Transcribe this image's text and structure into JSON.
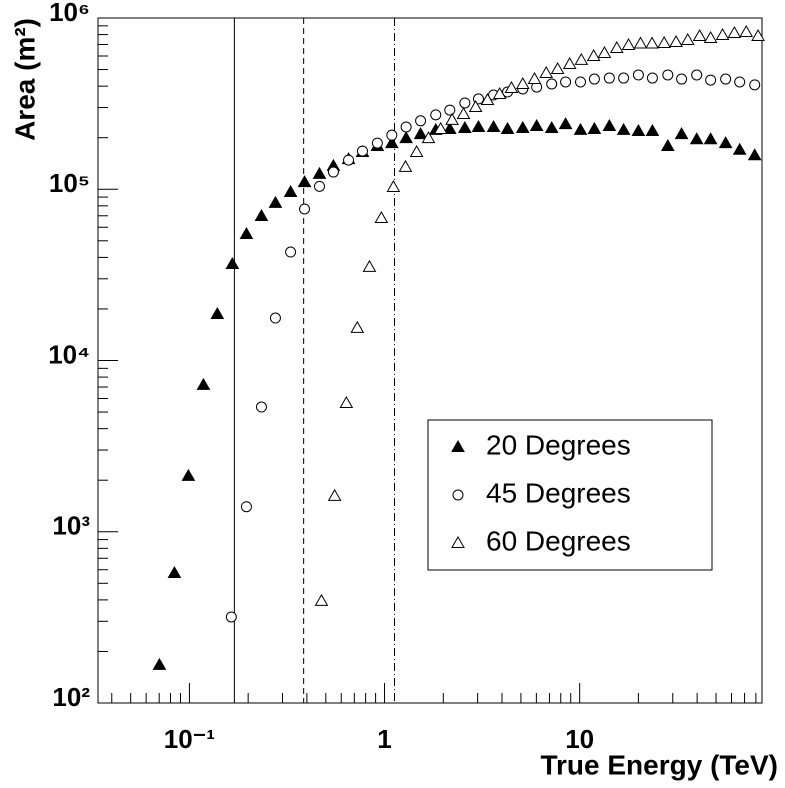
{
  "chart_data": {
    "type": "scatter",
    "x_label": "True Energy (TeV)",
    "y_label": "Area (m²)",
    "log_x": true,
    "log_y": true,
    "xlim": [
      0.034,
      86
    ],
    "ylim": [
      100,
      1000000
    ],
    "xticks": [
      {
        "value": 0.1,
        "label": "10⁻¹"
      },
      1,
      10
    ],
    "yticks": [
      {
        "value": 100,
        "label": "10²"
      },
      {
        "value": 1000,
        "label": "10³"
      },
      {
        "value": 10000,
        "label": "10⁴"
      },
      {
        "value": 100000,
        "label": "10⁵"
      },
      {
        "value": 1000000,
        "label": "10⁶"
      }
    ],
    "legend_position": "right",
    "vlines": [
      {
        "x": 0.17,
        "style": "solid"
      },
      {
        "x": 0.385,
        "style": "dashed"
      },
      {
        "x": 1.125,
        "style": "dashdot"
      }
    ],
    "series": [
      {
        "name": "20 Degrees",
        "color": "#000000",
        "marker": "filled-triangle",
        "x": [
          0.0702,
          0.0838,
          0.0988,
          0.118,
          0.139,
          0.166,
          0.196,
          0.234,
          0.276,
          0.33,
          0.389,
          0.464,
          0.547,
          0.654,
          0.771,
          0.919,
          1.09,
          1.29,
          1.53,
          1.83,
          2.16,
          2.58,
          3.03,
          3.62,
          4.27,
          5.11,
          6.02,
          7.19,
          8.47,
          10.1,
          11.9,
          14.2,
          16.8,
          20.0,
          23.6,
          28.3,
          33.3,
          39.8,
          46.9,
          56.0,
          66.1,
          78.9
        ],
        "values": [
          167,
          574,
          2120,
          7200,
          18700,
          36600,
          54800,
          69800,
          83200,
          96400,
          110000,
          123000,
          137000,
          150000,
          165000,
          179000,
          186000,
          199000,
          210000,
          222000,
          225000,
          228000,
          231000,
          231000,
          225000,
          228000,
          234000,
          228000,
          240000,
          222000,
          225000,
          234000,
          222000,
          219000,
          219000,
          179000,
          210000,
          196000,
          196000,
          186000,
          170000,
          158000
        ]
      },
      {
        "name": "45 Degrees",
        "color": "#000000",
        "marker": "open-circle",
        "x": [
          0.164,
          0.196,
          0.234,
          0.276,
          0.33,
          0.389,
          0.464,
          0.547,
          0.654,
          0.771,
          0.919,
          1.09,
          1.29,
          1.53,
          1.83,
          2.16,
          2.58,
          3.03,
          3.62,
          4.27,
          5.11,
          6.02,
          7.19,
          8.47,
          10.1,
          11.9,
          14.2,
          16.8,
          20.0,
          23.6,
          28.3,
          33.3,
          39.8,
          46.9,
          56.0,
          66.1,
          78.9
        ],
        "values": [
          318,
          1400,
          5350,
          17700,
          43000,
          76700,
          104000,
          126000,
          148000,
          167000,
          186000,
          207000,
          231000,
          251000,
          272000,
          290000,
          319000,
          337000,
          355000,
          370000,
          385000,
          395000,
          412000,
          423000,
          423000,
          440000,
          446000,
          446000,
          465000,
          446000,
          465000,
          440000,
          465000,
          434000,
          440000,
          423000,
          407000
        ]
      },
      {
        "name": "60 Degrees",
        "color": "#000000",
        "marker": "open-triangle",
        "x": [
          0.475,
          0.555,
          0.637,
          0.725,
          0.837,
          0.963,
          1.11,
          1.28,
          1.46,
          1.68,
          1.94,
          2.22,
          2.54,
          2.93,
          3.37,
          3.89,
          4.47,
          5.11,
          5.87,
          6.74,
          7.71,
          8.89,
          10.2,
          11.8,
          13.4,
          15.5,
          17.8,
          20.5,
          23.5,
          27.1,
          31.2,
          35.8,
          41.2,
          46.9,
          54.0,
          62.1,
          71.4,
          82.1
        ],
        "values": [
          395,
          1620,
          5650,
          15500,
          35200,
          67900,
          103000,
          135000,
          165000,
          199000,
          225000,
          254000,
          275000,
          302000,
          332000,
          360000,
          390000,
          412000,
          440000,
          477000,
          504000,
          539000,
          569000,
          600000,
          625000,
          668000,
          695000,
          710000,
          710000,
          715000,
          724000,
          744000,
          785000,
          764000,
          796000,
          817000,
          829000,
          785000
        ]
      }
    ]
  }
}
